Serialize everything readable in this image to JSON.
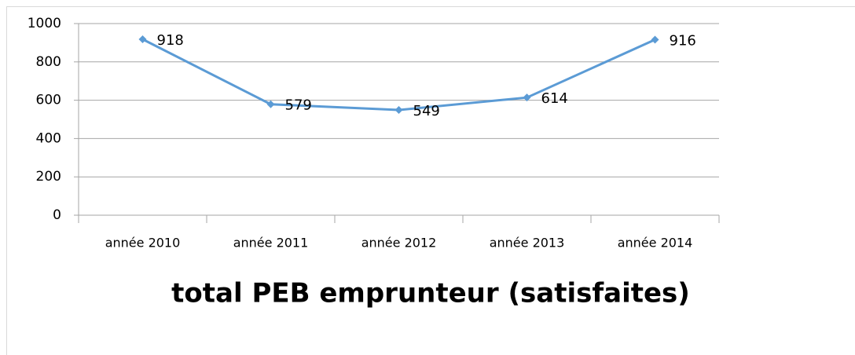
{
  "chart_data": {
    "type": "line",
    "title": "total PEB emprunteur (satisfaites)",
    "categories": [
      "année 2010",
      "année 2011",
      "année 2012",
      "année 2013",
      "année 2014"
    ],
    "series": [
      {
        "name": "total PEB emprunteur (satisfaites)",
        "color": "#5b9bd5",
        "values": [
          918,
          579,
          549,
          614,
          916
        ]
      }
    ],
    "ylim": [
      0,
      1000
    ],
    "yticks": [
      0,
      200,
      400,
      600,
      800,
      1000
    ],
    "grid": true,
    "data_labels": true
  }
}
